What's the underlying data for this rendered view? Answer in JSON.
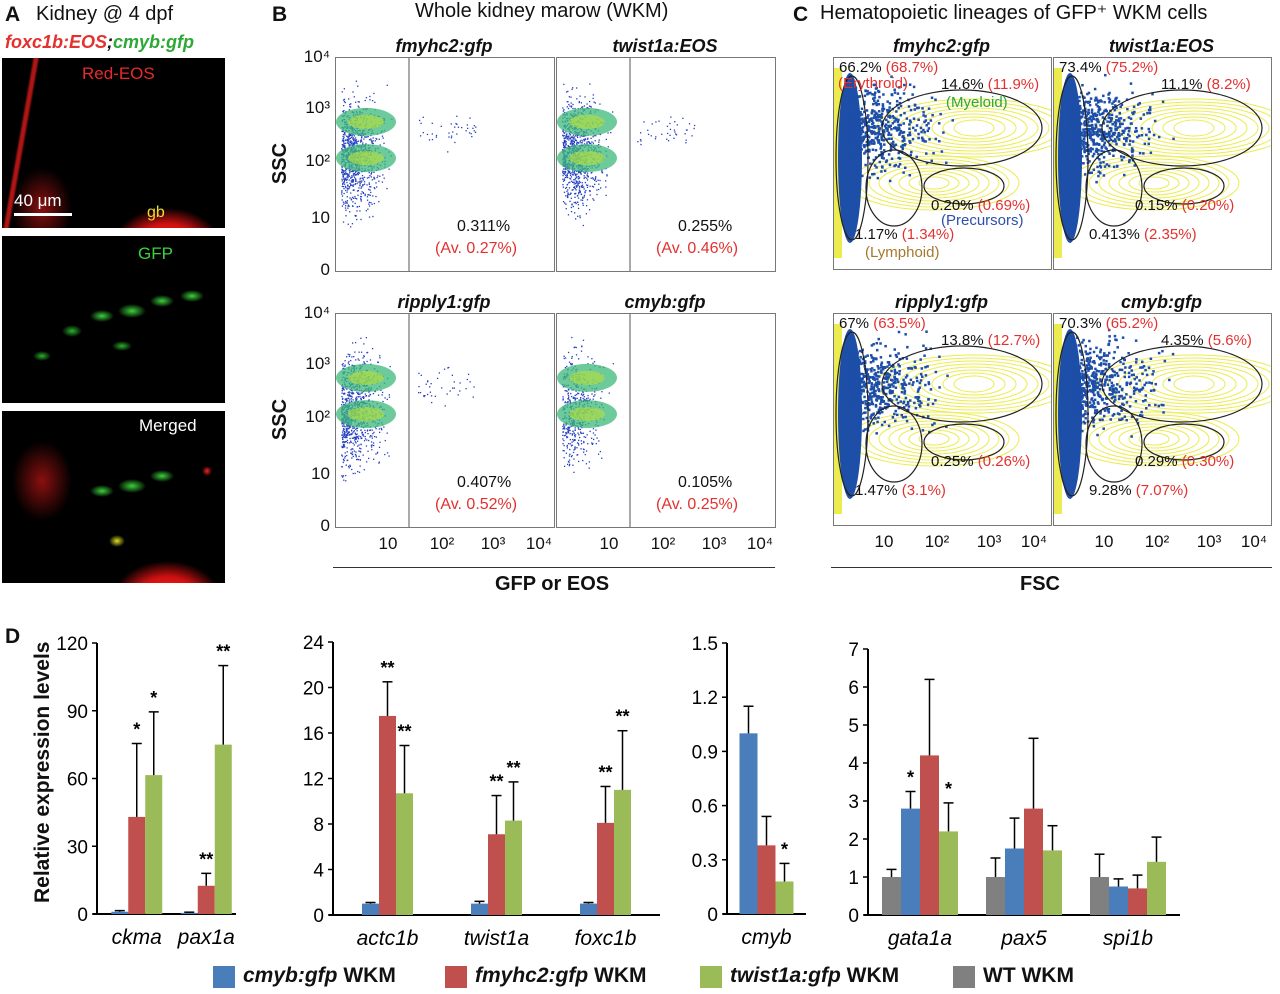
{
  "panel_a": {
    "label": "A",
    "title": "Kidney @ 4 dpf",
    "subtitle_red": "foxc1b:EOS",
    "subtitle_sep": ";",
    "subtitle_green": "cmyb:gfp",
    "images": [
      {
        "caption": "Red-EOS",
        "scale_bar": "40 μm",
        "organ_label": "gb"
      },
      {
        "caption": "GFP"
      },
      {
        "caption": "Merged"
      }
    ]
  },
  "panel_b": {
    "label": "B",
    "title": "Whole kidney marow (WKM)",
    "y_label": "SSC",
    "x_label": "GFP or EOS",
    "y_ticks": [
      "10⁴",
      "10³",
      "10²",
      "10",
      "0"
    ],
    "x_ticks": [
      "10",
      "10²",
      "10³",
      "10⁴"
    ],
    "plots": [
      {
        "title": "fmyhc2:gfp",
        "percent": "0.311%",
        "average": "(Av. 0.27%)"
      },
      {
        "title": "twist1a:EOS",
        "percent": "0.255%",
        "average": "(Av. 0.46%)"
      },
      {
        "title": "ripply1:gfp",
        "percent": "0.407%",
        "average": "(Av. 0.52%)"
      },
      {
        "title": "cmyb:gfp",
        "percent": "0.105%",
        "average": "(Av. 0.25%)"
      }
    ]
  },
  "panel_c": {
    "label": "C",
    "title": "Hematopoietic lineages of GFP⁺ WKM cells",
    "x_label": "FSC",
    "x_ticks": [
      "10",
      "10²",
      "10³",
      "10⁴"
    ],
    "lineages": {
      "erythroid": "(Erythroid)",
      "myeloid": "(Myeloid)",
      "precursors": "(Precursors)",
      "lymphoid": "(Lymphoid)"
    },
    "plots": [
      {
        "title": "fmyhc2:gfp",
        "erythroid": [
          "66.2%",
          "(68.7%)"
        ],
        "myeloid": [
          "14.6%",
          "(11.9%)"
        ],
        "precursors": [
          "0.20%",
          "(0.69%)"
        ],
        "lymphoid": [
          "1.17%",
          "(1.34%)"
        ]
      },
      {
        "title": "twist1a:EOS",
        "erythroid": [
          "73.4%",
          "(75.2%)"
        ],
        "myeloid": [
          "11.1%",
          "(8.2%)"
        ],
        "precursors": [
          "0.15%",
          "(0.20%)"
        ],
        "lymphoid": [
          "0.413%",
          "(2.35%)"
        ]
      },
      {
        "title": "ripply1:gfp",
        "erythroid": [
          "67%",
          "(63.5%)"
        ],
        "myeloid": [
          "13.8%",
          "(12.7%)"
        ],
        "precursors": [
          "0.25%",
          "(0.26%)"
        ],
        "lymphoid": [
          "1.47%",
          "(3.1%)"
        ]
      },
      {
        "title": "cmyb:gfp",
        "erythroid": [
          "70.3%",
          "(65.2%)"
        ],
        "myeloid": [
          "4.35%",
          "(5.6%)"
        ],
        "precursors": [
          "0.29%",
          "(0.30%)"
        ],
        "lymphoid": [
          "9.28%",
          "(7.07%)"
        ]
      }
    ]
  },
  "panel_d": {
    "label": "D",
    "y_label": "Relative expression levels",
    "legend": [
      {
        "gene": "cmyb:gfp",
        "suffix": " WKM",
        "color": "#4a7ebb"
      },
      {
        "gene": "fmyhc2:gfp",
        "suffix": " WKM",
        "color": "#c0504d"
      },
      {
        "gene": "twist1a:gfp",
        "suffix": " WKM",
        "color": "#9bbb59"
      },
      {
        "gene": "",
        "suffix": "WT WKM",
        "color": "#808080"
      }
    ]
  },
  "chart_data": [
    {
      "type": "bar",
      "ylabel": "Relative expression levels",
      "ylim": [
        0,
        120
      ],
      "yticks": [
        "0",
        "30",
        "60",
        "90",
        "120"
      ],
      "categories": [
        "ckma",
        "pax1a"
      ],
      "series": [
        {
          "name": "cmyb:gfp WKM",
          "color": "#4a7ebb",
          "values": [
            1,
            0.5
          ],
          "error_top": [
            1.5,
            0.8
          ],
          "significance": [
            "",
            ""
          ]
        },
        {
          "name": "fmyhc2:gfp WKM",
          "color": "#c0504d",
          "values": [
            43,
            12.5
          ],
          "error_top": [
            75.5,
            18
          ],
          "significance": [
            "*",
            "**"
          ]
        },
        {
          "name": "twist1a:gfp WKM",
          "color": "#9bbb59",
          "values": [
            61.5,
            75
          ],
          "error_top": [
            89.5,
            110
          ],
          "significance": [
            "*",
            "**"
          ]
        }
      ]
    },
    {
      "type": "bar",
      "ylim": [
        0,
        24
      ],
      "yticks": [
        "0",
        "4",
        "8",
        "12",
        "16",
        "20",
        "24"
      ],
      "categories": [
        "actc1b",
        "twist1a",
        "foxc1b"
      ],
      "series": [
        {
          "name": "cmyb:gfp WKM",
          "color": "#4a7ebb",
          "values": [
            1,
            1,
            1
          ],
          "error_top": [
            1.1,
            1.2,
            1.1
          ],
          "significance": [
            "",
            "",
            ""
          ]
        },
        {
          "name": "fmyhc2:gfp WKM",
          "color": "#c0504d",
          "values": [
            17.5,
            7.1,
            8.1
          ],
          "error_top": [
            20.5,
            10.5,
            11.3
          ],
          "significance": [
            "**",
            "**",
            "**"
          ]
        },
        {
          "name": "twist1a:gfp WKM",
          "color": "#9bbb59",
          "values": [
            10.7,
            8.3,
            11
          ],
          "error_top": [
            14.9,
            11.7,
            16.2
          ],
          "significance": [
            "**",
            "**",
            "**"
          ]
        }
      ]
    },
    {
      "type": "bar",
      "ylim": [
        0,
        1.5
      ],
      "yticks": [
        "0",
        "0.3",
        "0.6",
        "0.9",
        "1.2",
        "1.5"
      ],
      "categories": [
        "cmyb"
      ],
      "series": [
        {
          "name": "cmyb:gfp WKM",
          "color": "#4a7ebb",
          "values": [
            1.0
          ],
          "error_top": [
            1.15
          ],
          "significance": [
            ""
          ]
        },
        {
          "name": "fmyhc2:gfp WKM",
          "color": "#c0504d",
          "values": [
            0.38
          ],
          "error_top": [
            0.54
          ],
          "significance": [
            ""
          ]
        },
        {
          "name": "twist1a:gfp WKM",
          "color": "#9bbb59",
          "values": [
            0.18
          ],
          "error_top": [
            0.28
          ],
          "significance": [
            "*"
          ]
        }
      ]
    },
    {
      "type": "bar",
      "ylim": [
        0,
        7
      ],
      "yticks": [
        "0",
        "1",
        "2",
        "3",
        "4",
        "5",
        "6",
        "7"
      ],
      "categories": [
        "gata1a",
        "pax5",
        "spi1b"
      ],
      "series": [
        {
          "name": "WT WKM",
          "color": "#808080",
          "values": [
            1,
            1,
            1
          ],
          "error_top": [
            1.2,
            1.5,
            1.6
          ],
          "significance": [
            "",
            "",
            ""
          ]
        },
        {
          "name": "cmyb:gfp WKM",
          "color": "#4a7ebb",
          "values": [
            2.8,
            1.75,
            0.75
          ],
          "error_top": [
            3.25,
            2.55,
            0.95
          ],
          "significance": [
            "*",
            "",
            ""
          ]
        },
        {
          "name": "fmyhc2:gfp WKM",
          "color": "#c0504d",
          "values": [
            4.2,
            2.8,
            0.7
          ],
          "error_top": [
            6.2,
            4.65,
            1.05
          ],
          "significance": [
            "",
            "",
            ""
          ]
        },
        {
          "name": "twist1a:gfp WKM",
          "color": "#9bbb59",
          "values": [
            2.2,
            1.7,
            1.4
          ],
          "error_top": [
            2.95,
            2.35,
            2.05
          ],
          "significance": [
            "*",
            "",
            ""
          ]
        }
      ]
    }
  ]
}
